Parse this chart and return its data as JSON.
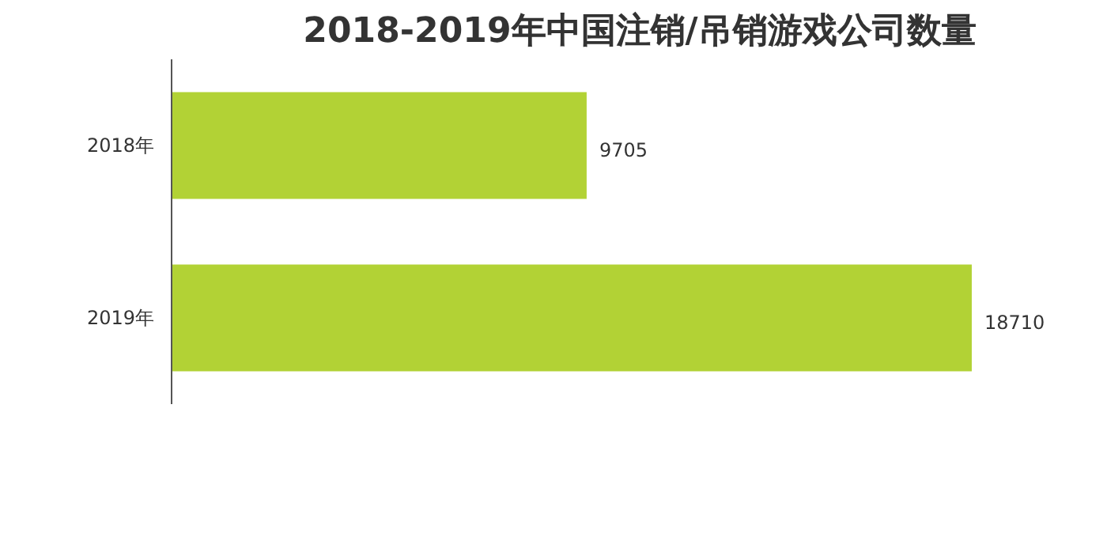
{
  "chart_data": {
    "type": "bar",
    "orientation": "horizontal",
    "title": "2018-2019年中国注销/吊销游戏公司数量",
    "categories": [
      "2018年",
      "2019年"
    ],
    "values": [
      9705,
      18710
    ],
    "color": "#b2d235",
    "data_labels": true,
    "grid": false,
    "tick_labels": "y"
  }
}
